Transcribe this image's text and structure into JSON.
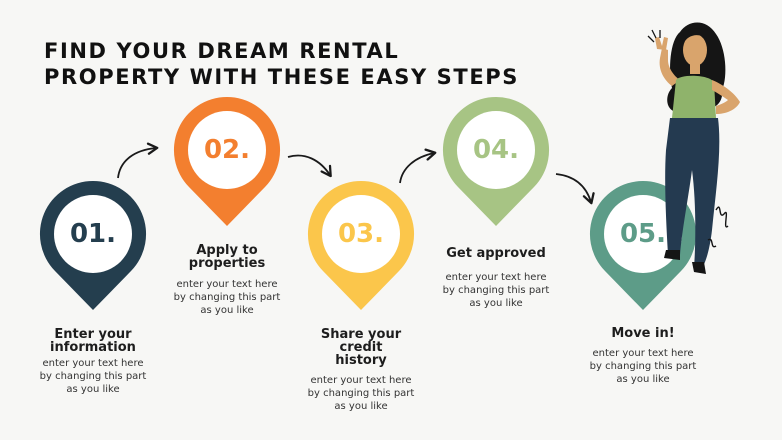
{
  "title": {
    "line1": "FIND YOUR DREAM RENTAL",
    "line2": "PROPERTY WITH THESE EASY STEPS"
  },
  "colors": {
    "step1": "#243e4e",
    "step2": "#f37f2f",
    "step3": "#fbc64b",
    "step4": "#a7c484",
    "step5": "#5d9c88"
  },
  "steps": [
    {
      "number": "01.",
      "heading": [
        "Enter your",
        "information"
      ],
      "body": [
        "enter your text here",
        "by changing this part",
        "as you like"
      ]
    },
    {
      "number": "02.",
      "heading": [
        "Apply to",
        "properties"
      ],
      "body": [
        "enter your text here",
        "by changing this part",
        "as you like"
      ]
    },
    {
      "number": "03.",
      "heading": [
        "Share your",
        "credit",
        "history"
      ],
      "body": [
        "enter your text here",
        "by changing this part",
        "as you like"
      ]
    },
    {
      "number": "04.",
      "heading": [
        "Get approved"
      ],
      "body": [
        "enter your text here",
        "by changing this part",
        "as you like"
      ]
    },
    {
      "number": "05.",
      "heading": [
        "Move in!"
      ],
      "body": [
        "enter your text here",
        "by changing this part",
        "as you like"
      ]
    }
  ],
  "illustration": {
    "icon": "woman-peace-sign-illustration"
  }
}
